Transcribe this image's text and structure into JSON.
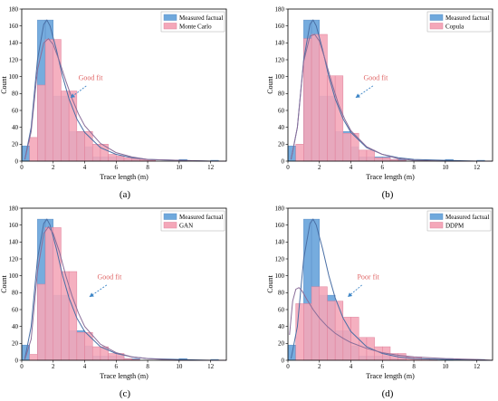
{
  "colors": {
    "measured": "#6fa8dc",
    "measured_edge": "#5b8fc7",
    "model": "#f4a7b9",
    "model_edge": "#e0809a",
    "measured_curve": "#4a6fa5",
    "model_curve": "#8a6d99",
    "annotation": "#e06666",
    "arrow": "#3d85c6"
  },
  "chart_data": [
    {
      "type": "bar",
      "panel": "(a)",
      "xlabel": "Trace length (m)",
      "ylabel": "Count",
      "xlim": [
        0,
        13
      ],
      "ylim": [
        0,
        180
      ],
      "xticks": [
        0,
        2,
        4,
        6,
        8,
        10,
        12
      ],
      "yticks": [
        0,
        20,
        40,
        60,
        80,
        100,
        120,
        140,
        160,
        180
      ],
      "bin_width": 0.5,
      "series": [
        {
          "name": "Measured factual",
          "x": [
            0.25,
            0.75,
            1.25,
            1.75,
            2.25,
            2.75,
            3.25,
            3.75,
            4.25,
            4.75,
            5.25,
            5.75,
            6.25,
            6.75,
            7.25,
            7.75,
            10.25,
            12.25
          ],
          "values": [
            18,
            0,
            167,
            167,
            77,
            77,
            35,
            35,
            17,
            5,
            5,
            5,
            5,
            2,
            2,
            1,
            2,
            1
          ]
        },
        {
          "name": "Monte Carlo",
          "x": [
            0.75,
            1.25,
            1.75,
            2.25,
            2.75,
            3.25,
            3.75,
            4.25,
            4.75,
            5.25,
            5.75,
            6.25,
            6.75,
            7.25,
            7.75,
            8.25
          ],
          "values": [
            28,
            90,
            144,
            144,
            83,
            83,
            35,
            35,
            20,
            20,
            8,
            6,
            4,
            3,
            2,
            1
          ]
        }
      ],
      "curves": [
        {
          "series": "Measured factual",
          "x": [
            0.2,
            0.6,
            1.0,
            1.4,
            1.6,
            1.8,
            2.2,
            2.6,
            3.0,
            3.5,
            4.0,
            5.0,
            6.0,
            7.0,
            8.0,
            10.0,
            12.0,
            13.0
          ],
          "y": [
            2,
            40,
            120,
            162,
            167,
            160,
            132,
            100,
            74,
            50,
            34,
            16,
            8,
            4,
            2,
            1,
            0,
            0
          ]
        },
        {
          "series": "Monte Carlo",
          "x": [
            0.2,
            0.6,
            1.0,
            1.4,
            1.7,
            2.0,
            2.4,
            2.8,
            3.2,
            3.6,
            4.0,
            5.0,
            6.0,
            7.0,
            8.0,
            10.0,
            12.0,
            13.0
          ],
          "y": [
            2,
            35,
            108,
            140,
            145,
            138,
            118,
            95,
            74,
            56,
            42,
            21,
            10,
            5,
            2,
            1,
            0,
            0
          ]
        }
      ],
      "annotation": {
        "text": "Good fit"
      }
    },
    {
      "type": "bar",
      "panel": "(b)",
      "xlabel": "Trace length (m)",
      "ylabel": "Count",
      "xlim": [
        0,
        13
      ],
      "ylim": [
        0,
        180
      ],
      "xticks": [
        0,
        2,
        4,
        6,
        8,
        10,
        12
      ],
      "yticks": [
        0,
        20,
        40,
        60,
        80,
        100,
        120,
        140,
        160,
        180
      ],
      "bin_width": 0.5,
      "series": [
        {
          "name": "Measured factual",
          "x": [
            0.25,
            0.75,
            1.25,
            1.75,
            2.25,
            2.75,
            3.25,
            3.75,
            4.25,
            4.75,
            5.25,
            5.75,
            6.25,
            6.75,
            7.25,
            10.25,
            12.25
          ],
          "values": [
            18,
            0,
            167,
            167,
            77,
            77,
            35,
            35,
            17,
            5,
            5,
            5,
            5,
            2,
            2,
            2,
            1
          ]
        },
        {
          "name": "Copula",
          "x": [
            0.75,
            1.25,
            1.75,
            2.25,
            2.75,
            3.25,
            3.75,
            4.25,
            4.75,
            5.25,
            5.75,
            6.25,
            6.75,
            7.25
          ],
          "values": [
            20,
            145,
            150,
            150,
            101,
            101,
            33,
            33,
            13,
            13,
            4,
            4,
            2,
            1
          ]
        }
      ],
      "curves": [
        {
          "series": "Measured factual",
          "x": [
            0.2,
            0.6,
            1.0,
            1.4,
            1.6,
            1.8,
            2.2,
            2.6,
            3.0,
            3.5,
            4.0,
            5.0,
            6.0,
            7.0,
            8.0,
            10.0,
            12.0,
            13.0
          ],
          "y": [
            2,
            40,
            120,
            162,
            167,
            160,
            132,
            100,
            74,
            50,
            34,
            16,
            8,
            4,
            2,
            1,
            0,
            0
          ]
        },
        {
          "series": "Copula",
          "x": [
            0.2,
            0.6,
            1.0,
            1.4,
            1.7,
            2.0,
            2.4,
            2.8,
            3.2,
            3.6,
            4.0,
            5.0,
            6.0,
            7.0,
            8.0,
            10.0,
            12.0,
            13.0
          ],
          "y": [
            2,
            40,
            118,
            148,
            150,
            142,
            118,
            92,
            68,
            50,
            36,
            17,
            8,
            3,
            1,
            0,
            0,
            0
          ]
        }
      ],
      "annotation": {
        "text": "Good fit"
      }
    },
    {
      "type": "bar",
      "panel": "(c)",
      "xlabel": "Trace length (m)",
      "ylabel": "Count",
      "xlim": [
        0,
        13
      ],
      "ylim": [
        0,
        180
      ],
      "xticks": [
        0,
        2,
        4,
        6,
        8,
        10,
        12
      ],
      "yticks": [
        0,
        20,
        40,
        60,
        80,
        100,
        120,
        140,
        160,
        180
      ],
      "bin_width": 0.5,
      "series": [
        {
          "name": "Measured factual",
          "x": [
            0.25,
            0.75,
            1.25,
            1.75,
            2.25,
            2.75,
            3.25,
            3.75,
            4.25,
            4.75,
            5.25,
            5.75,
            6.25,
            6.75,
            7.25,
            10.25,
            12.25
          ],
          "values": [
            18,
            0,
            167,
            167,
            77,
            77,
            35,
            35,
            17,
            5,
            5,
            5,
            5,
            2,
            2,
            2,
            1
          ]
        },
        {
          "name": "GAN",
          "x": [
            0.75,
            1.25,
            1.75,
            2.25,
            2.75,
            3.25,
            3.75,
            4.25,
            4.75,
            5.25,
            5.75,
            6.25,
            6.75,
            7.25
          ],
          "values": [
            7,
            90,
            157,
            157,
            105,
            105,
            33,
            33,
            16,
            16,
            8,
            8,
            2,
            1
          ]
        }
      ],
      "curves": [
        {
          "series": "Measured factual",
          "x": [
            0.2,
            0.6,
            1.0,
            1.4,
            1.6,
            1.8,
            2.2,
            2.6,
            3.0,
            3.5,
            4.0,
            5.0,
            6.0,
            7.0,
            8.0,
            10.0,
            12.0,
            13.0
          ],
          "y": [
            2,
            40,
            120,
            162,
            167,
            160,
            132,
            100,
            74,
            50,
            34,
            16,
            8,
            4,
            2,
            1,
            0,
            0
          ]
        },
        {
          "series": "GAN",
          "x": [
            0.2,
            0.6,
            1.0,
            1.4,
            1.7,
            2.0,
            2.4,
            2.8,
            3.2,
            3.6,
            4.0,
            5.0,
            6.0,
            7.0,
            8.0,
            10.0,
            12.0,
            13.0
          ],
          "y": [
            1,
            25,
            105,
            150,
            158,
            150,
            128,
            100,
            76,
            56,
            40,
            19,
            9,
            4,
            2,
            0,
            0,
            0
          ]
        }
      ],
      "annotation": {
        "text": "Good fit"
      }
    },
    {
      "type": "bar",
      "panel": "(d)",
      "xlabel": "Trace length (m)",
      "ylabel": "Count",
      "xlim": [
        0,
        13
      ],
      "ylim": [
        0,
        180
      ],
      "xticks": [
        0,
        2,
        4,
        6,
        8,
        10,
        12
      ],
      "yticks": [
        0,
        20,
        40,
        60,
        80,
        100,
        120,
        140,
        160,
        180
      ],
      "bin_width": 0.5,
      "series": [
        {
          "name": "Measured factual",
          "x": [
            0.25,
            0.75,
            1.25,
            1.75,
            2.25,
            2.75,
            3.25,
            3.75,
            4.25,
            4.75,
            5.25,
            5.75,
            6.25,
            6.75,
            7.25,
            10.25,
            12.25
          ],
          "values": [
            18,
            0,
            167,
            167,
            77,
            77,
            35,
            35,
            17,
            5,
            5,
            5,
            5,
            2,
            2,
            2,
            1
          ]
        },
        {
          "name": "DDPM",
          "x": [
            0.75,
            1.25,
            1.75,
            2.25,
            2.75,
            3.25,
            3.75,
            4.25,
            4.75,
            5.25,
            5.75,
            6.25,
            6.75,
            7.25,
            7.75,
            8.25,
            8.75,
            9.25
          ],
          "values": [
            67,
            67,
            87,
            87,
            70,
            70,
            51,
            51,
            27,
            27,
            16,
            16,
            8,
            8,
            4,
            4,
            2,
            1
          ]
        }
      ],
      "curves": [
        {
          "series": "Measured factual",
          "x": [
            0.2,
            0.6,
            1.0,
            1.4,
            1.6,
            1.8,
            2.2,
            2.6,
            3.0,
            3.5,
            4.0,
            5.0,
            6.0,
            7.0,
            8.0,
            10.0,
            12.0,
            13.0
          ],
          "y": [
            2,
            40,
            120,
            162,
            167,
            160,
            132,
            100,
            74,
            50,
            34,
            16,
            8,
            4,
            2,
            1,
            0,
            0
          ]
        },
        {
          "series": "DDPM",
          "x": [
            0.1,
            0.3,
            0.5,
            0.7,
            0.9,
            1.2,
            1.6,
            2.0,
            2.5,
            3.0,
            3.5,
            4.0,
            5.0,
            6.0,
            7.0,
            8.0,
            10.0,
            12.0,
            13.0
          ],
          "y": [
            30,
            70,
            84,
            86,
            82,
            72,
            60,
            50,
            40,
            32,
            26,
            21,
            14,
            9,
            6,
            4,
            2,
            1,
            0
          ]
        }
      ],
      "annotation": {
        "text": "Poor fit"
      }
    }
  ]
}
